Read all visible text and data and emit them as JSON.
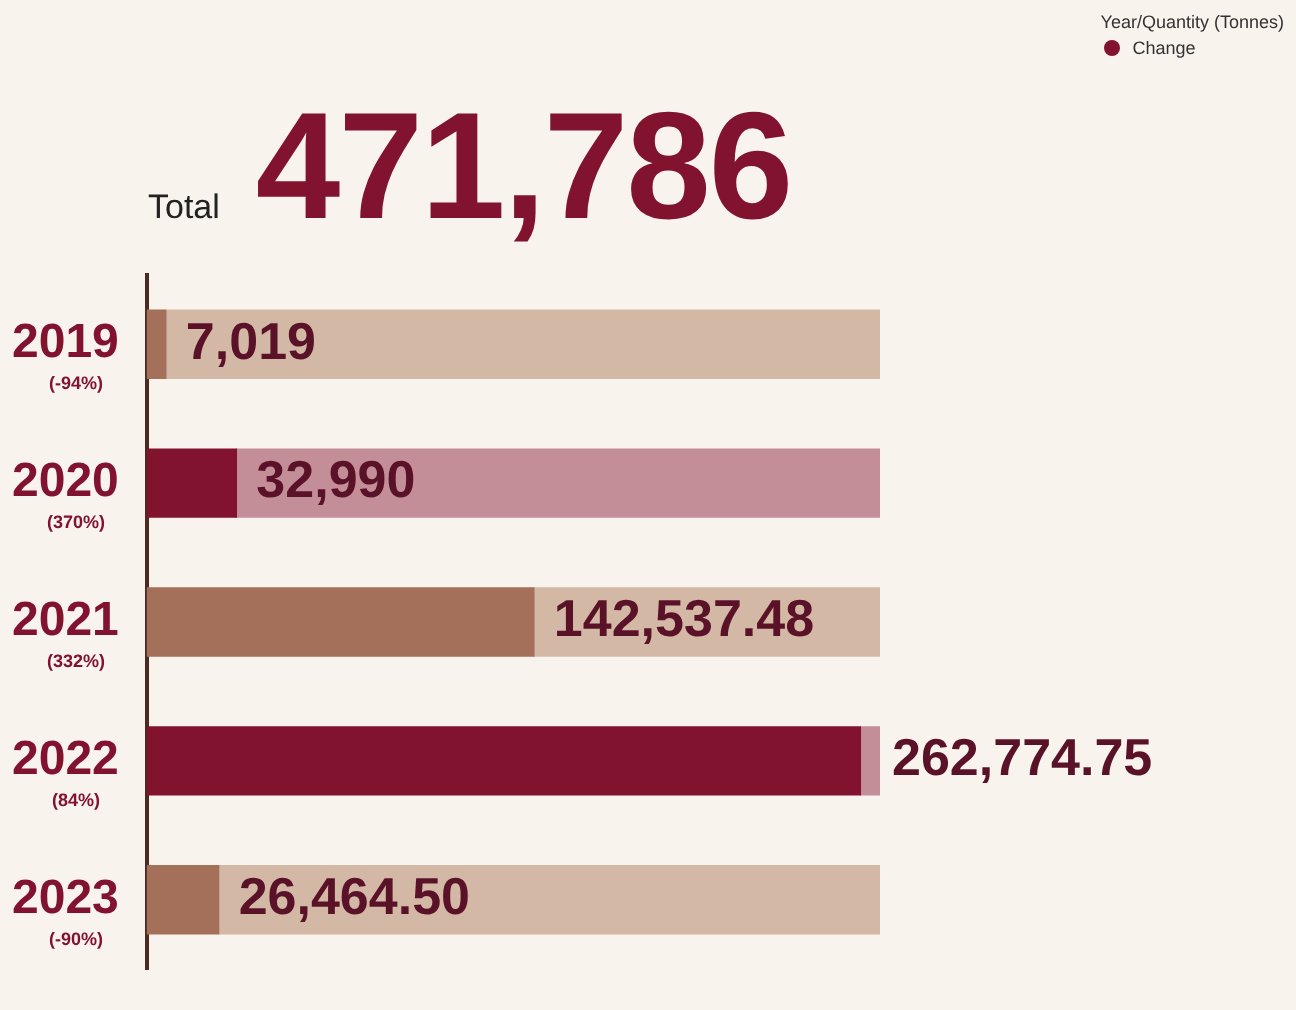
{
  "chart_data": {
    "type": "bar",
    "orientation": "horizontal",
    "subtitle": "Total",
    "title": "471,786",
    "legend_title": "Year/Quantity (Tonnes)",
    "legend": "top right",
    "categories": [
      "2019",
      "2020",
      "2021",
      "2022",
      "2023"
    ],
    "series": [
      {
        "name": "Change",
        "color": "#82132f",
        "colors": [
          "#a5705a",
          "#82132f",
          "#a5705a",
          "#82132f",
          "#a5705a"
        ],
        "values": [
          7019,
          32990,
          142537.48,
          262774.75,
          26464.5
        ],
        "value_labels": [
          "7,019",
          "32,990",
          "142,537.48",
          "262,774.75",
          "26,464.50"
        ]
      },
      {
        "colors": [
          "#d4b8a6",
          "#c48e98",
          "#d4b8a6",
          "#c48e98",
          "#d4b8a6"
        ],
        "values": [
          262981,
          237010,
          127462.52,
          7225.25,
          243535.5
        ]
      }
    ],
    "stacked": true,
    "annotations": [
      "(-94%)",
      "(370%)",
      "(332%)",
      "(84%)",
      "(-90%)"
    ],
    "xlim": [
      0,
      270000
    ],
    "tick_labels": "y",
    "grid": false
  }
}
